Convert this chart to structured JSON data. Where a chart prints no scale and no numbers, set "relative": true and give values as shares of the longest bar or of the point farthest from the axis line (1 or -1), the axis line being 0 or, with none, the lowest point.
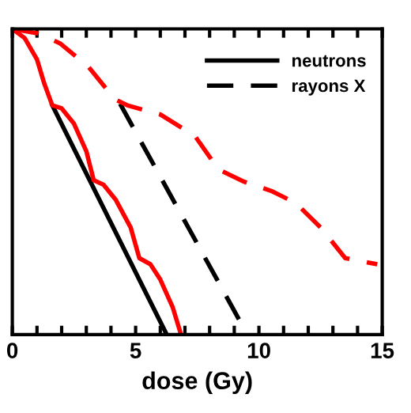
{
  "chart_data": {
    "type": "line",
    "relative": true,
    "xlabel": "dose (Gy)",
    "xlim": [
      0,
      15
    ],
    "xticks": [
      0,
      {
        "value": 1,
        "label": null
      },
      {
        "value": 2,
        "label": null
      },
      {
        "value": 3,
        "label": null
      },
      {
        "value": 4,
        "label": null
      },
      5,
      {
        "value": 6,
        "label": null
      },
      {
        "value": 7,
        "label": null
      },
      {
        "value": 8,
        "label": null
      },
      {
        "value": 9,
        "label": null
      },
      10,
      {
        "value": 11,
        "label": null
      },
      {
        "value": 12,
        "label": null
      },
      {
        "value": 13,
        "label": null
      },
      {
        "value": 14,
        "label": null
      },
      15
    ],
    "legend": "top right",
    "grid": false,
    "marker": "none",
    "series": [
      {
        "name": "neutrons",
        "color": "#000000",
        "line_style": "solid",
        "x": [
          1.62,
          6.26
        ],
        "values": [
          0.75,
          0
        ]
      },
      {
        "name": "rayons X",
        "color": "#000000",
        "line_style": "dashed",
        "x": [
          4.37,
          9.53
        ],
        "values": [
          0.755,
          0
        ]
      },
      {
        "color": "#ff0000",
        "line_style": "solid",
        "x": [
          0,
          0.5,
          1,
          1.3,
          1.62,
          2.0,
          2.5,
          3.0,
          3.3,
          3.7,
          4.2,
          4.8,
          5.15,
          5.6,
          6.0,
          6.5,
          6.84
        ],
        "values": [
          1.0,
          0.97,
          0.9,
          0.82,
          0.75,
          0.74,
          0.69,
          0.6,
          0.505,
          0.49,
          0.44,
          0.35,
          0.25,
          0.23,
          0.18,
          0.09,
          0
        ]
      },
      {
        "color": "#ff0000",
        "line_style": "dashed",
        "x": [
          0,
          1.05,
          1.93,
          3.1,
          4.15,
          4.66,
          6.0,
          7.4,
          8.36,
          9.4,
          10.5,
          11.5,
          12.5,
          13.5,
          14.8
        ],
        "values": [
          1.0,
          0.985,
          0.953,
          0.875,
          0.77,
          0.75,
          0.72,
          0.65,
          0.54,
          0.5,
          0.47,
          0.43,
          0.35,
          0.25,
          0.23
        ]
      }
    ]
  }
}
